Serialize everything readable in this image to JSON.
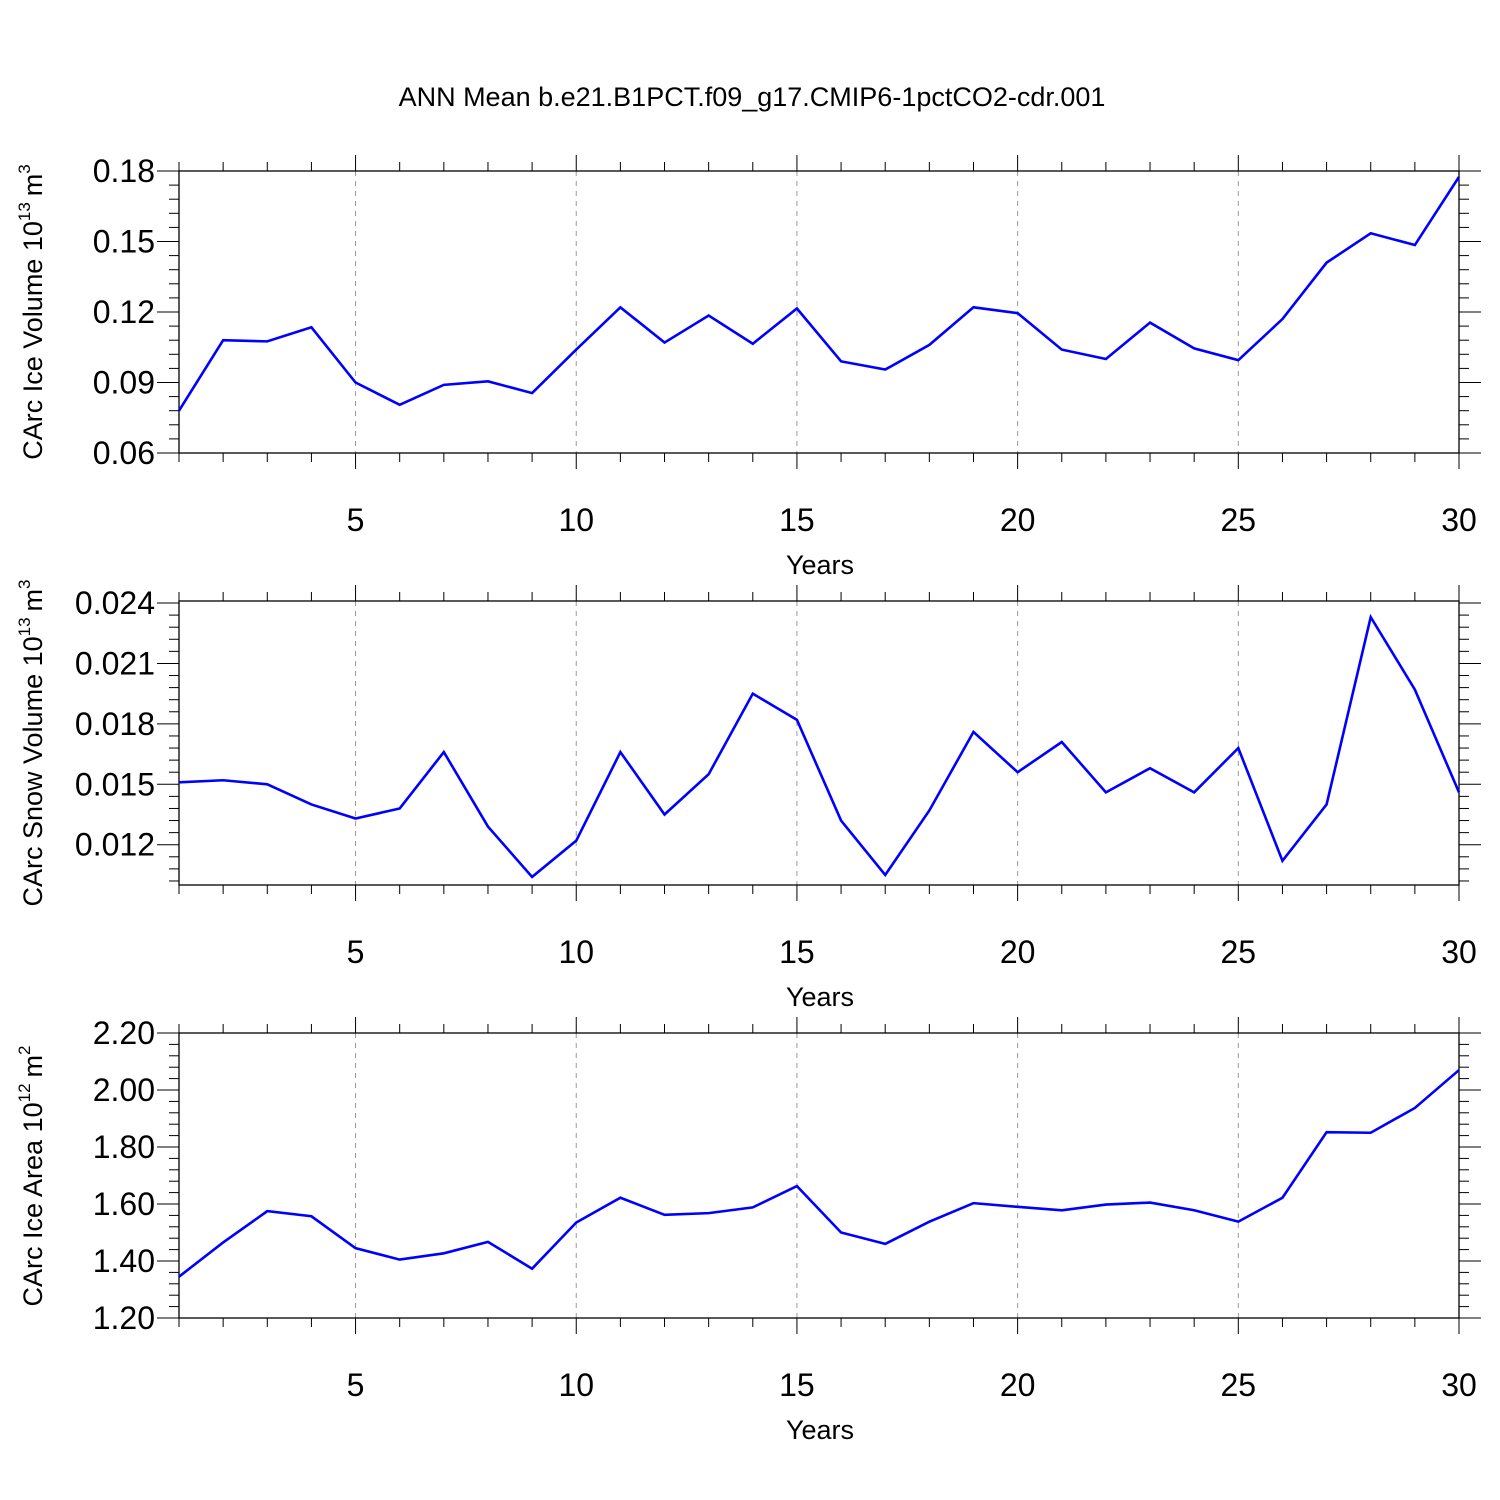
{
  "figure": {
    "title": "ANN Mean b.e21.B1PCT.f09_g17.CMIP6-1pctCO2-cdr.001",
    "line_color": "#0000ff",
    "grid_color": "#999999"
  },
  "chart_data": [
    {
      "type": "line",
      "title": "ANN Mean b.e21.B1PCT.f09_g17.CMIP6-1pctCO2-cdr.001",
      "ylabel_main": "CArc Ice Volume 10",
      "ylabel_exp": "13",
      "ylabel_unit": "m",
      "ylabel_unit_exp": "3",
      "xlabel": "Years",
      "xlim": [
        1,
        30
      ],
      "ylim": [
        0.06,
        0.18
      ],
      "xticks": [
        5,
        10,
        15,
        20,
        25,
        30
      ],
      "yticks": [
        0.06,
        0.09,
        0.12,
        0.15,
        0.18
      ],
      "ytick_labels": [
        "0.06",
        "0.09",
        "0.12",
        "0.15",
        "0.18"
      ],
      "grid": "vertical dashed at major x ticks",
      "x": [
        1,
        2,
        3,
        4,
        5,
        6,
        7,
        8,
        9,
        10,
        11,
        12,
        13,
        14,
        15,
        16,
        17,
        18,
        19,
        20,
        21,
        22,
        23,
        24,
        25,
        26,
        27,
        28,
        29,
        30
      ],
      "series": [
        {
          "values": [
            0.078,
            0.108,
            0.1075,
            0.1135,
            0.09,
            0.0805,
            0.089,
            0.0905,
            0.0855,
            0.104,
            0.122,
            0.107,
            0.1185,
            0.1065,
            0.1215,
            0.099,
            0.0955,
            0.106,
            0.122,
            0.1195,
            0.104,
            0.1,
            0.1155,
            0.1045,
            0.0995,
            0.117,
            0.141,
            0.1535,
            0.1485,
            0.1775
          ]
        }
      ]
    },
    {
      "type": "line",
      "ylabel_main": "CArc Snow Volume 10",
      "ylabel_exp": "13",
      "ylabel_unit": "m",
      "ylabel_unit_exp": "3",
      "xlabel": "Years",
      "xlim": [
        1,
        30
      ],
      "ylim": [
        0.01,
        0.0241
      ],
      "xticks": [
        5,
        10,
        15,
        20,
        25,
        30
      ],
      "yticks": [
        0.012,
        0.015,
        0.018,
        0.021,
        0.024
      ],
      "ytick_labels": [
        "0.012",
        "0.015",
        "0.018",
        "0.021",
        "0.024"
      ],
      "grid": "vertical dashed at major x ticks",
      "x": [
        1,
        2,
        3,
        4,
        5,
        6,
        7,
        8,
        9,
        10,
        11,
        12,
        13,
        14,
        15,
        16,
        17,
        18,
        19,
        20,
        21,
        22,
        23,
        24,
        25,
        26,
        27,
        28,
        29,
        30
      ],
      "series": [
        {
          "values": [
            0.0151,
            0.0152,
            0.015,
            0.014,
            0.0133,
            0.0138,
            0.0166,
            0.0129,
            0.0104,
            0.0122,
            0.0166,
            0.0135,
            0.0155,
            0.0195,
            0.0182,
            0.0132,
            0.0105,
            0.0137,
            0.0176,
            0.0156,
            0.0171,
            0.0146,
            0.0158,
            0.0146,
            0.0168,
            0.0112,
            0.014,
            0.0233,
            0.0197,
            0.0146
          ]
        }
      ]
    },
    {
      "type": "line",
      "ylabel_main": "CArc Ice Area 10",
      "ylabel_exp": "12",
      "ylabel_unit": "m",
      "ylabel_unit_exp": "2",
      "xlabel": "Years",
      "xlim": [
        1,
        30
      ],
      "ylim": [
        1.2,
        2.2
      ],
      "xticks": [
        5,
        10,
        15,
        20,
        25,
        30
      ],
      "yticks": [
        1.2,
        1.4,
        1.6,
        1.8,
        2.0,
        2.2
      ],
      "ytick_labels": [
        "1.20",
        "1.40",
        "1.60",
        "1.80",
        "2.00",
        "2.20"
      ],
      "grid": "vertical dashed at major x ticks",
      "x": [
        1,
        2,
        3,
        4,
        5,
        6,
        7,
        8,
        9,
        10,
        11,
        12,
        13,
        14,
        15,
        16,
        17,
        18,
        19,
        20,
        21,
        22,
        23,
        24,
        25,
        26,
        27,
        28,
        29,
        30
      ],
      "series": [
        {
          "values": [
            1.345,
            1.465,
            1.575,
            1.557,
            1.445,
            1.405,
            1.427,
            1.467,
            1.373,
            1.535,
            1.622,
            1.562,
            1.568,
            1.588,
            1.663,
            1.5,
            1.46,
            1.538,
            1.603,
            1.59,
            1.578,
            1.598,
            1.605,
            1.578,
            1.538,
            1.622,
            1.852,
            1.85,
            1.937,
            2.07
          ]
        }
      ]
    }
  ]
}
